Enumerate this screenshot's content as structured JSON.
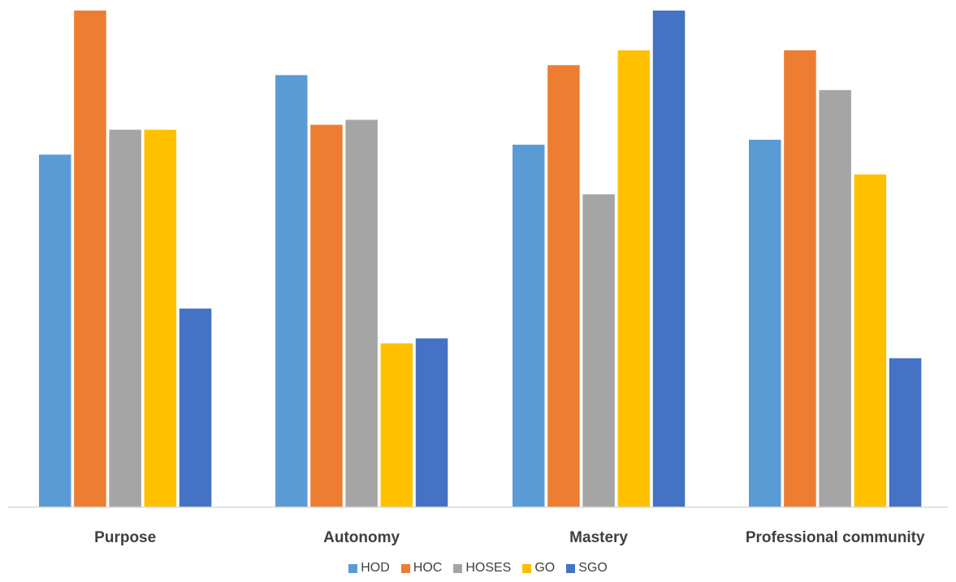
{
  "chart_data": {
    "type": "bar",
    "categories": [
      "Purpose",
      "Autonomy",
      "Mastery",
      "Professional community"
    ],
    "series": [
      {
        "name": "HOD",
        "color": "#5B9BD5",
        "values": [
          71,
          87,
          73,
          74
        ]
      },
      {
        "name": "HOC",
        "color": "#ED7D31",
        "values": [
          100,
          77,
          89,
          92
        ]
      },
      {
        "name": "HOSES",
        "color": "#A5A5A5",
        "values": [
          76,
          78,
          63,
          84
        ]
      },
      {
        "name": "GO",
        "color": "#FFC000",
        "values": [
          76,
          33,
          92,
          67
        ]
      },
      {
        "name": "SGO",
        "color": "#4472C4",
        "values": [
          40,
          34,
          100,
          30
        ]
      }
    ],
    "ylim": [
      0,
      100
    ],
    "grid": false,
    "legend_position": "bottom",
    "title": "",
    "xlabel": "",
    "ylabel": ""
  }
}
